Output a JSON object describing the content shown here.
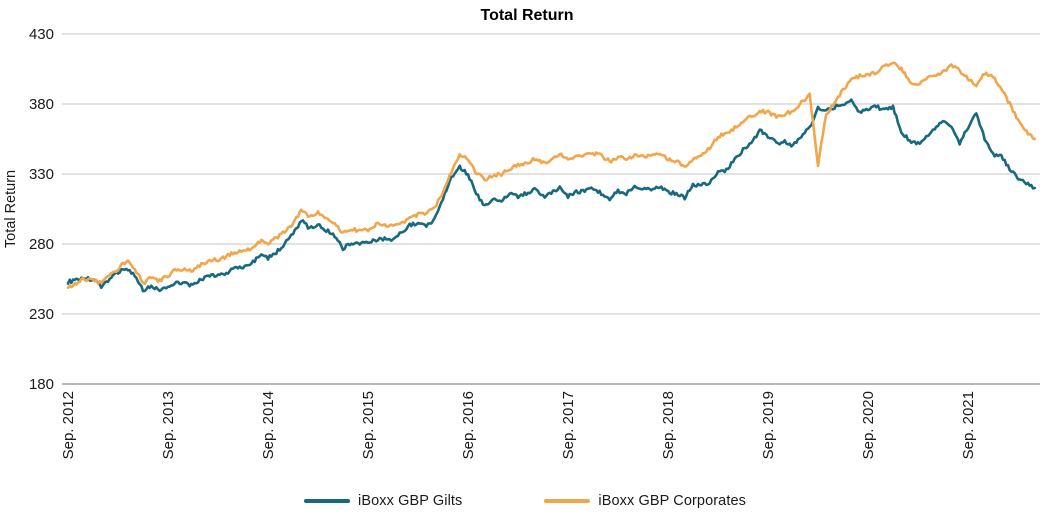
{
  "chart_data": {
    "type": "line",
    "title": "Total Return",
    "xlabel": "",
    "ylabel": "Total Return",
    "ylim": [
      180,
      430
    ],
    "yticks": [
      430,
      380,
      330,
      280,
      230,
      180
    ],
    "x_tick_labels": [
      "Sep. 2012",
      "Sep. 2013",
      "Sep. 2014",
      "Sep. 2015",
      "Sep. 2016",
      "Sep. 2017",
      "Sep. 2018",
      "Sep. 2019",
      "Sep. 2020",
      "Sep. 2021"
    ],
    "x_frequency": "monthly",
    "x_start": "Sep. 2012",
    "x_end": "May 2022",
    "months_between_ticks": 12,
    "grid": "horizontal",
    "legend_position": "bottom",
    "series": [
      {
        "name": "iBoxx GBP Gilts",
        "color": "#16697E",
        "values": [
          253,
          254,
          256,
          254,
          250,
          255,
          260,
          263,
          257,
          247,
          250,
          247,
          249,
          253,
          252,
          250,
          255,
          257,
          258,
          259,
          263,
          263,
          266,
          272,
          270,
          274,
          280,
          287,
          297,
          291,
          294,
          290,
          286,
          277,
          281,
          280,
          282,
          283,
          284,
          283,
          288,
          294,
          294,
          293,
          298,
          313,
          328,
          335,
          330,
          316,
          307,
          312,
          310,
          316,
          314,
          316,
          319,
          314,
          316,
          321,
          314,
          317,
          318,
          320,
          316,
          312,
          318,
          316,
          321,
          320,
          319,
          321,
          317,
          316,
          313,
          322,
          322,
          324,
          331,
          333,
          340,
          347,
          352,
          361,
          357,
          352,
          353,
          350,
          357,
          363,
          378,
          375,
          378,
          380,
          382,
          374,
          376,
          378,
          376,
          378,
          360,
          354,
          352,
          356,
          362,
          368,
          365,
          352,
          363,
          374,
          355,
          344,
          343,
          333,
          327,
          323,
          320
        ]
      },
      {
        "name": "iBoxx GBP Corporates",
        "color": "#F1A64C",
        "values": [
          249,
          252,
          255,
          254,
          252,
          258,
          262,
          268,
          263,
          252,
          256,
          254,
          257,
          262,
          262,
          261,
          265,
          268,
          269,
          271,
          274,
          275,
          277,
          282,
          281,
          284,
          289,
          294,
          305,
          299,
          303,
          299,
          295,
          288,
          291,
          289,
          290,
          294,
          294,
          293,
          295,
          299,
          301,
          302,
          306,
          317,
          332,
          344,
          341,
          331,
          326,
          329,
          330,
          334,
          336,
          337,
          341,
          338,
          340,
          344,
          340,
          343,
          343,
          345,
          343,
          339,
          342,
          341,
          343,
          342,
          343,
          344,
          341,
          339,
          336,
          340,
          344,
          348,
          357,
          359,
          363,
          368,
          371,
          375,
          374,
          371,
          373,
          375,
          381,
          387,
          337,
          373,
          381,
          390,
          398,
          400,
          401,
          403,
          407,
          409,
          405,
          396,
          394,
          398,
          400,
          403,
          407,
          404,
          398,
          393,
          402,
          399,
          391,
          380,
          368,
          360,
          355
        ]
      }
    ],
    "style": {
      "gridline_color": "#C4C4C4",
      "axis_color": "#8C8C8C",
      "text_color": "#1A1A1A",
      "title_color": "#000000",
      "line_width": 2.6,
      "daily_noise_amplitude": 1.3,
      "substeps_per_month": 5
    }
  }
}
